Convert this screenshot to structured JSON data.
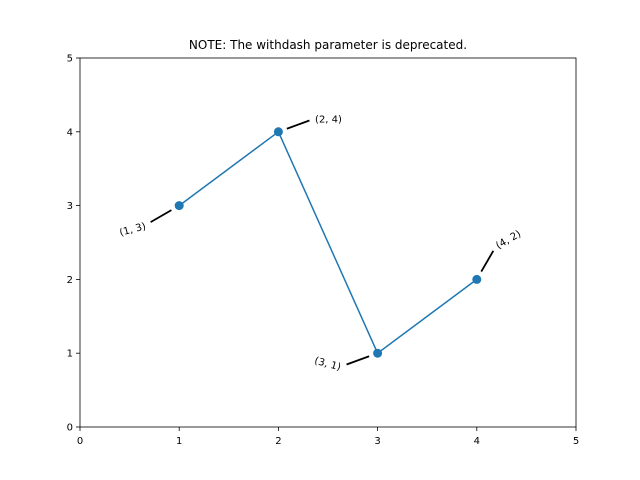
{
  "chart_data": {
    "type": "line",
    "title": "NOTE: The withdash parameter is deprecated.",
    "xlabel": "",
    "ylabel": "",
    "xlim": [
      0,
      5
    ],
    "ylim": [
      0,
      5
    ],
    "xticks": [
      0,
      1,
      2,
      3,
      4,
      5
    ],
    "yticks": [
      0,
      1,
      2,
      3,
      4,
      5
    ],
    "grid": false,
    "series": [
      {
        "color": "#1f77b4",
        "marker": "circle",
        "points": [
          {
            "x": 1,
            "y": 3
          },
          {
            "x": 2,
            "y": 4
          },
          {
            "x": 3,
            "y": 1
          },
          {
            "x": 4,
            "y": 2
          }
        ]
      }
    ],
    "annotations": [
      {
        "text": "(1, 3)",
        "x": 1,
        "y": 3,
        "dash_angle_deg": 210,
        "text_rotation_deg": -15
      },
      {
        "text": "(2, 4)",
        "x": 2,
        "y": 4,
        "dash_angle_deg": 20,
        "text_rotation_deg": 0
      },
      {
        "text": "(3, 1)",
        "x": 3,
        "y": 1,
        "dash_angle_deg": 200,
        "text_rotation_deg": 15
      },
      {
        "text": "(4, 2)",
        "x": 4,
        "y": 2,
        "dash_angle_deg": 60,
        "text_rotation_deg": -30
      }
    ]
  }
}
